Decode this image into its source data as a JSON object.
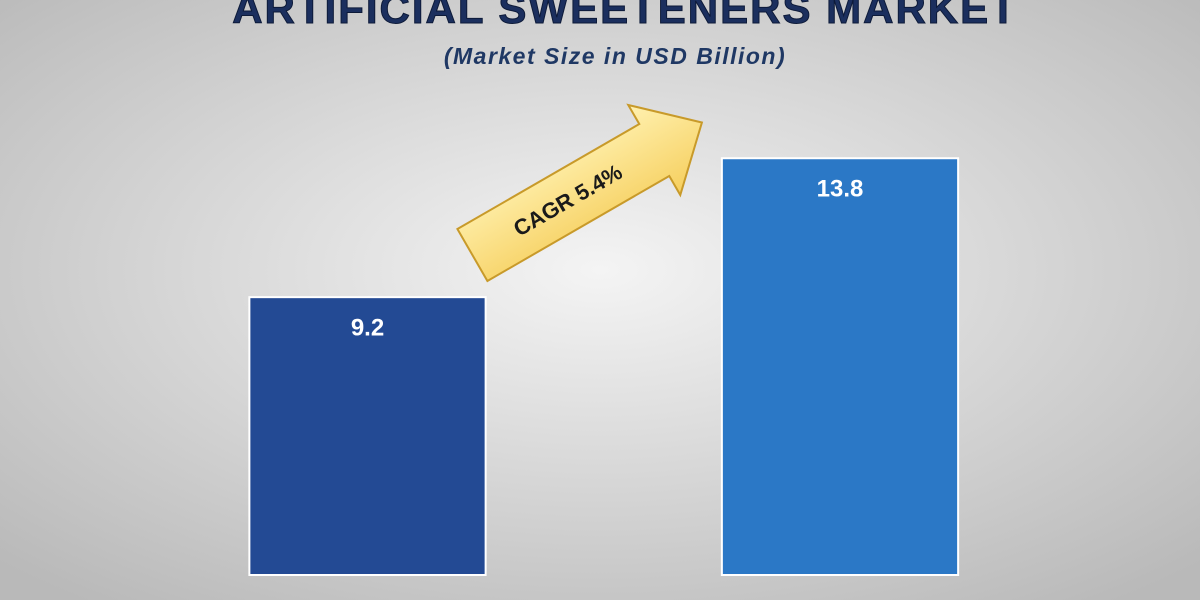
{
  "chart_data": {
    "type": "bar",
    "title": "ARTIFICIAL SWEETENERS MARKET",
    "subtitle": "(Market Size in USD Billion)",
    "annotation": "CAGR 5.4%",
    "categories": [
      null,
      null
    ],
    "values": [
      9.2,
      13.8
    ],
    "colors": [
      "#234a94",
      "#2b78c6"
    ],
    "ylim": [
      0,
      15
    ]
  }
}
